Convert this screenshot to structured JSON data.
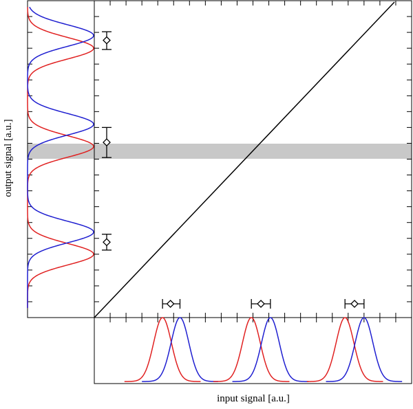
{
  "axes": {
    "xlabel": "input signal [a.u.]",
    "ylabel": "output signal [a.u.]"
  },
  "colors": {
    "red": "#e02020",
    "blue": "#1e1ed0",
    "band": "#c8c8c8",
    "ink": "#000000"
  },
  "chart_data": {
    "type": "line",
    "description_axes": "main panel maps input signal to output signal; bottom panel shows input distributions; left panel shows output distributions",
    "main_line": {
      "x": [
        0,
        1
      ],
      "y": [
        0,
        1
      ]
    },
    "input_groups": [
      {
        "red_center": 0.215,
        "blue_center": 0.27,
        "marker": 0.24,
        "err": [
          0.215,
          0.27
        ]
      },
      {
        "red_center": 0.495,
        "blue_center": 0.555,
        "marker": 0.525,
        "err": [
          0.495,
          0.555
        ]
      },
      {
        "red_center": 0.79,
        "blue_center": 0.85,
        "marker": 0.82,
        "err": [
          0.79,
          0.85
        ]
      }
    ],
    "output_groups": [
      {
        "red_center": 0.85,
        "blue_center": 0.89,
        "marker": 0.875,
        "err": [
          0.846,
          0.902
        ]
      },
      {
        "red_center": 0.54,
        "blue_center": 0.61,
        "marker": 0.553,
        "err": [
          0.505,
          0.6
        ]
      },
      {
        "red_center": 0.2,
        "blue_center": 0.27,
        "marker": 0.238,
        "err": [
          0.213,
          0.263
        ]
      }
    ],
    "output_band": {
      "ymin": 0.525,
      "ymax": 0.575
    },
    "ylim": [
      0,
      1
    ],
    "xlim": [
      0,
      1
    ]
  }
}
